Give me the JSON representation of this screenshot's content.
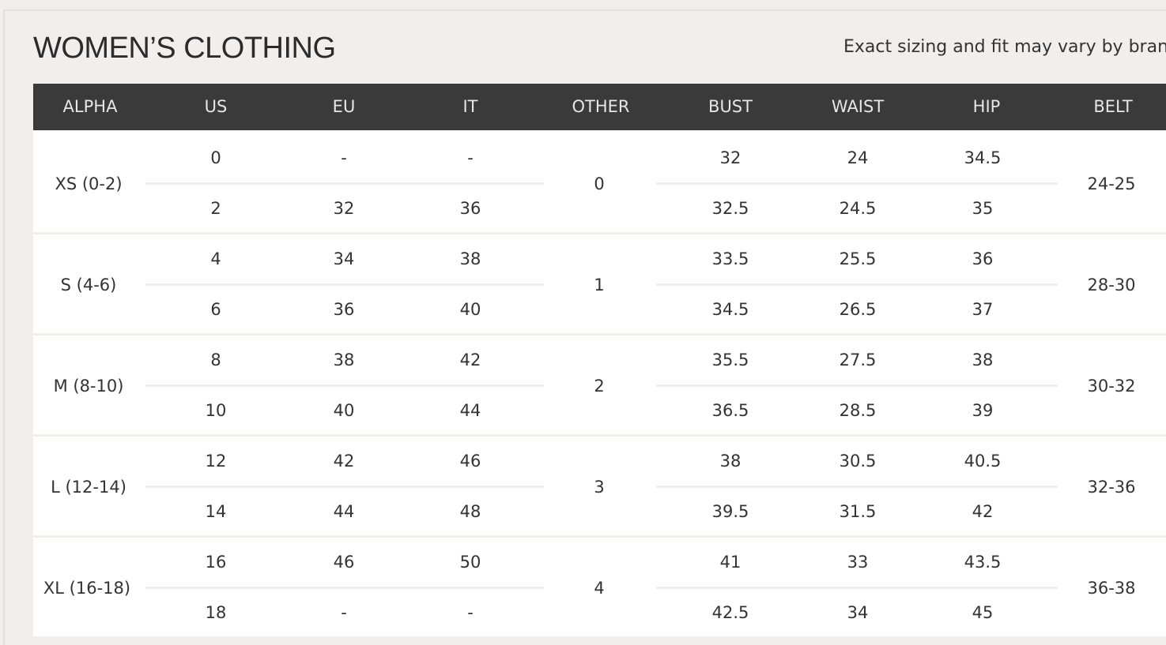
{
  "title": "WOMEN’S CLOTHING",
  "note": "Exact sizing and fit may vary by brand",
  "columns": [
    "ALPHA",
    "US",
    "EU",
    "IT",
    "OTHER",
    "BUST",
    "WAIST",
    "HIP",
    "BELT"
  ],
  "groups": [
    {
      "alpha": "XS (0-2)",
      "other": "0",
      "belt": "24-25",
      "rows": [
        {
          "us": "0",
          "eu": "-",
          "it": "-",
          "bust": "32",
          "waist": "24",
          "hip": "34.5"
        },
        {
          "us": "2",
          "eu": "32",
          "it": "36",
          "bust": "32.5",
          "waist": "24.5",
          "hip": "35"
        }
      ]
    },
    {
      "alpha": "S (4-6)",
      "other": "1",
      "belt": "28-30",
      "rows": [
        {
          "us": "4",
          "eu": "34",
          "it": "38",
          "bust": "33.5",
          "waist": "25.5",
          "hip": "36"
        },
        {
          "us": "6",
          "eu": "36",
          "it": "40",
          "bust": "34.5",
          "waist": "26.5",
          "hip": "37"
        }
      ]
    },
    {
      "alpha": "M (8-10)",
      "other": "2",
      "belt": "30-32",
      "rows": [
        {
          "us": "8",
          "eu": "38",
          "it": "42",
          "bust": "35.5",
          "waist": "27.5",
          "hip": "38"
        },
        {
          "us": "10",
          "eu": "40",
          "it": "44",
          "bust": "36.5",
          "waist": "28.5",
          "hip": "39"
        }
      ]
    },
    {
      "alpha": "L (12-14)",
      "other": "3",
      "belt": "32-36",
      "rows": [
        {
          "us": "12",
          "eu": "42",
          "it": "46",
          "bust": "38",
          "waist": "30.5",
          "hip": "40.5"
        },
        {
          "us": "14",
          "eu": "44",
          "it": "48",
          "bust": "39.5",
          "waist": "31.5",
          "hip": "42"
        }
      ]
    },
    {
      "alpha": "XL (16-18)",
      "other": "4",
      "belt": "36-38",
      "rows": [
        {
          "us": "16",
          "eu": "46",
          "it": "50",
          "bust": "41",
          "waist": "33",
          "hip": "43.5"
        },
        {
          "us": "18",
          "eu": "-",
          "it": "-",
          "bust": "42.5",
          "waist": "34",
          "hip": "45"
        }
      ]
    }
  ]
}
